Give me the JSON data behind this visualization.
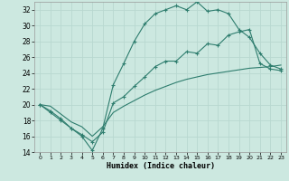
{
  "xlabel": "Humidex (Indice chaleur)",
  "bg_color": "#cce8e0",
  "line_color": "#2e7d6e",
  "grid_major_color": "#b8d8d0",
  "grid_minor_color": "#d0ece6",
  "xmin": -0.5,
  "xmax": 23.5,
  "ymin": 14,
  "ymax": 33,
  "yticks": [
    14,
    16,
    18,
    20,
    22,
    24,
    26,
    28,
    30,
    32
  ],
  "xticks": [
    0,
    1,
    2,
    3,
    4,
    5,
    6,
    7,
    8,
    9,
    10,
    11,
    12,
    13,
    14,
    15,
    16,
    17,
    18,
    19,
    20,
    21,
    22,
    23
  ],
  "curve1_x": [
    0,
    1,
    2,
    3,
    4,
    5,
    6,
    7,
    8,
    9,
    10,
    11,
    12,
    13,
    14,
    15,
    16,
    17,
    18,
    19,
    20,
    21,
    22,
    23
  ],
  "curve1_y": [
    20.0,
    19.0,
    18.0,
    17.0,
    16.0,
    14.2,
    17.0,
    22.5,
    25.2,
    28.0,
    30.2,
    31.5,
    32.0,
    32.5,
    32.0,
    33.0,
    31.8,
    32.0,
    31.5,
    29.5,
    28.5,
    26.5,
    25.0,
    24.5
  ],
  "curve2_x": [
    0,
    1,
    2,
    3,
    4,
    5,
    6,
    7,
    8,
    9,
    10,
    11,
    12,
    13,
    14,
    15,
    16,
    17,
    18,
    19,
    20,
    21,
    22,
    23
  ],
  "curve2_y": [
    20.0,
    19.2,
    18.2,
    17.0,
    16.2,
    15.3,
    16.5,
    20.2,
    21.0,
    22.3,
    23.5,
    24.8,
    25.5,
    25.5,
    26.7,
    26.5,
    27.7,
    27.5,
    28.8,
    29.2,
    29.5,
    25.2,
    24.5,
    24.3
  ],
  "curve3_x": [
    0,
    1,
    2,
    3,
    4,
    5,
    6,
    7,
    8,
    9,
    10,
    11,
    12,
    13,
    14,
    15,
    16,
    17,
    18,
    19,
    20,
    21,
    22,
    23
  ],
  "curve3_y": [
    20.0,
    19.8,
    18.8,
    17.8,
    17.2,
    16.0,
    17.2,
    19.0,
    19.8,
    20.5,
    21.2,
    21.8,
    22.3,
    22.8,
    23.2,
    23.5,
    23.8,
    24.0,
    24.2,
    24.4,
    24.6,
    24.7,
    24.8,
    25.0
  ]
}
